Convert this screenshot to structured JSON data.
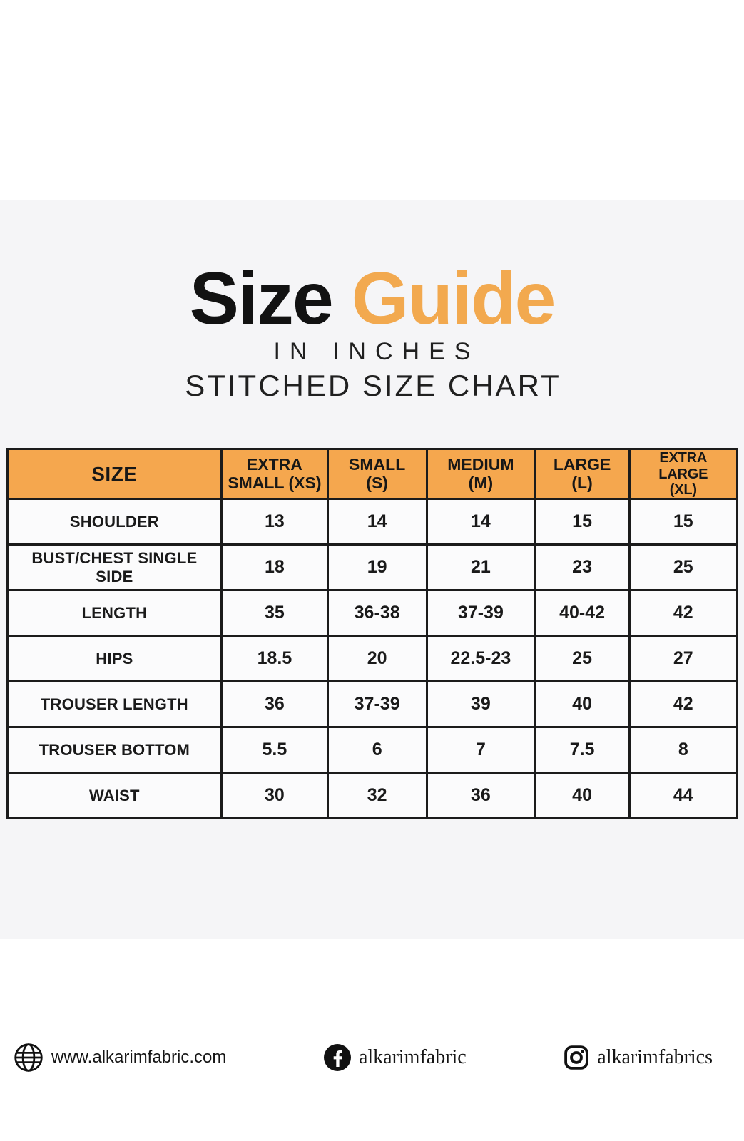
{
  "title": {
    "word1": "Size",
    "word2": "Guide",
    "subtitle1": "IN INCHES",
    "subtitle2": "STITCHED SIZE CHART"
  },
  "colors": {
    "accent_orange_header": "#F5A74E",
    "accent_orange_title": "#F2A94F",
    "panel_background": "#F5F5F7",
    "cell_background": "#FBFBFC",
    "table_border": "#1B1B1B",
    "text": "#1A1A1A"
  },
  "chart_data": {
    "type": "table",
    "title": "Size Guide in inches — stitched size chart",
    "columns": [
      "SIZE",
      "EXTRA\nSMALL (XS)",
      "SMALL\n(S)",
      "MEDIUM\n(M)",
      "LARGE\n(L)",
      "EXTRA LARGE\n(XL)"
    ],
    "rows": [
      {
        "label": "SHOULDER",
        "values": [
          "13",
          "14",
          "14",
          "15",
          "15"
        ]
      },
      {
        "label": "BUST/CHEST SINGLE SIDE",
        "values": [
          "18",
          "19",
          "21",
          "23",
          "25"
        ]
      },
      {
        "label": "LENGTH",
        "values": [
          "35",
          "36-38",
          "37-39",
          "40-42",
          "42"
        ]
      },
      {
        "label": "HIPS",
        "values": [
          "18.5",
          "20",
          "22.5-23",
          "25",
          "27"
        ]
      },
      {
        "label": "TROUSER LENGTH",
        "values": [
          "36",
          "37-39",
          "39",
          "40",
          "42"
        ]
      },
      {
        "label": "TROUSER BOTTOM",
        "values": [
          "5.5",
          "6",
          "7",
          "7.5",
          "8"
        ]
      },
      {
        "label": "WAIST",
        "values": [
          "30",
          "32",
          "36",
          "40",
          "44"
        ]
      }
    ]
  },
  "footer": {
    "website": "www.alkarimfabric.com",
    "facebook": "alkarimfabric",
    "instagram": "alkarimfabrics"
  }
}
